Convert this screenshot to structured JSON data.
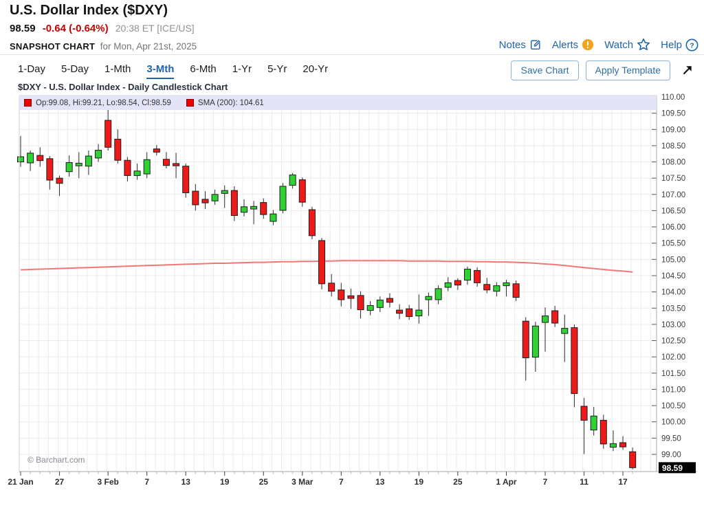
{
  "header": {
    "title": "U.S. Dollar Index ($DXY)",
    "last_price": "98.59",
    "change": "-0.64 (-0.64%)",
    "quote_time": "20:38 ET [ICE/US]",
    "snapshot_label": "SNAPSHOT CHART",
    "snapshot_date": "for Mon, Apr 21st, 2025",
    "links": [
      {
        "label": "Notes",
        "icon": "notes-edit-icon"
      },
      {
        "label": "Alerts",
        "icon": "alert-circle-icon"
      },
      {
        "label": "Watch",
        "icon": "star-icon"
      },
      {
        "label": "Help",
        "icon": "help-circle-icon"
      }
    ]
  },
  "toolbar": {
    "tabs": [
      {
        "label": "1-Day",
        "active": false
      },
      {
        "label": "5-Day",
        "active": false
      },
      {
        "label": "1-Mth",
        "active": false
      },
      {
        "label": "3-Mth",
        "active": true
      },
      {
        "label": "6-Mth",
        "active": false
      },
      {
        "label": "1-Yr",
        "active": false
      },
      {
        "label": "5-Yr",
        "active": false
      },
      {
        "label": "20-Yr",
        "active": false
      }
    ],
    "save_chart_label": "Save Chart",
    "apply_template_label": "Apply Template"
  },
  "chart": {
    "subtitle": "$DXY - U.S. Dollar Index - Daily Candlestick Chart",
    "legend": {
      "ohlc_label": "Op:99.08, Hi:99.21, Lo:98.54, Cl:98.59",
      "sma_label": "SMA (200): 104.61"
    },
    "watermark": "© Barchart.com",
    "last_price_label": "98.59",
    "colors": {
      "accent_blue": "#1f63a8",
      "change_red": "#c40000",
      "alert_orange": "#f2a41d",
      "candle_up": "#2fd133",
      "candle_down": "#ee1a1a",
      "candle_border": "#1c1c1c",
      "wick": "#2a2a2a",
      "sma_line": "#f07070",
      "grid": "#ececec",
      "axis": "#a8a8a8",
      "tick": "#555555",
      "axis_label": "#3c3c3c",
      "badge_bg": "#000000",
      "badge_text": "#ffffff",
      "legend_bg": "#e4e4f8",
      "watermark_gray": "#8b8b95"
    }
  },
  "chart_data": {
    "type": "candlestick",
    "title": "$DXY - U.S. Dollar Index - Daily Candlestick Chart",
    "y_axis": {
      "label_max": 110.0,
      "label_min": 99.0,
      "tick_step": 0.5,
      "plot_min": 98.47,
      "plot_max": 110.17
    },
    "x_labels": [
      {
        "label": "21 Jan",
        "index": 0
      },
      {
        "label": "27",
        "index": 4
      },
      {
        "label": "3 Feb",
        "index": 9
      },
      {
        "label": "7",
        "index": 13
      },
      {
        "label": "13",
        "index": 17
      },
      {
        "label": "19",
        "index": 21
      },
      {
        "label": "25",
        "index": 25
      },
      {
        "label": "3 Mar",
        "index": 29
      },
      {
        "label": "7",
        "index": 33
      },
      {
        "label": "13",
        "index": 37
      },
      {
        "label": "19",
        "index": 41
      },
      {
        "label": "25",
        "index": 45
      },
      {
        "label": "1 Apr",
        "index": 50
      },
      {
        "label": "7",
        "index": 54
      },
      {
        "label": "11",
        "index": 58
      },
      {
        "label": "17",
        "index": 62
      }
    ],
    "candles": {
      "format": [
        "date",
        "open",
        "high",
        "low",
        "close"
      ],
      "rows": [
        [
          "Jan 21",
          108.0,
          108.8,
          107.85,
          108.16
        ],
        [
          "Jan 22",
          107.97,
          108.35,
          107.72,
          108.27
        ],
        [
          "Jan 23",
          108.2,
          108.45,
          107.85,
          108.04
        ],
        [
          "Jan 24",
          108.1,
          108.18,
          107.15,
          107.44
        ],
        [
          "Jan 27",
          107.5,
          107.58,
          106.95,
          107.34
        ],
        [
          "Jan 28",
          107.7,
          108.2,
          107.55,
          107.98
        ],
        [
          "Jan 29",
          107.88,
          108.3,
          107.5,
          107.96
        ],
        [
          "Jan 30",
          107.87,
          108.35,
          107.6,
          108.18
        ],
        [
          "Jan 31",
          108.12,
          108.55,
          108.0,
          108.36
        ],
        [
          "Feb 3",
          109.28,
          109.8,
          108.35,
          108.45
        ],
        [
          "Feb 4",
          108.7,
          109.0,
          107.95,
          108.05
        ],
        [
          "Feb 5",
          108.05,
          108.15,
          107.4,
          107.58
        ],
        [
          "Feb 6",
          107.58,
          107.95,
          107.45,
          107.72
        ],
        [
          "Feb 7",
          107.63,
          108.3,
          107.5,
          108.07
        ],
        [
          "Feb 10",
          108.4,
          108.52,
          108.2,
          108.3
        ],
        [
          "Feb 11",
          108.08,
          108.3,
          107.8,
          107.89
        ],
        [
          "Feb 12",
          107.95,
          108.28,
          107.5,
          107.88
        ],
        [
          "Feb 13",
          107.87,
          107.95,
          106.9,
          107.05
        ],
        [
          "Feb 14",
          107.1,
          107.32,
          106.5,
          106.68
        ],
        [
          "Feb 17",
          106.85,
          107.1,
          106.55,
          106.74
        ],
        [
          "Feb 18",
          106.8,
          107.15,
          106.68,
          107.0
        ],
        [
          "Feb 19",
          107.03,
          107.28,
          106.58,
          107.12
        ],
        [
          "Feb 20",
          107.12,
          107.25,
          106.18,
          106.35
        ],
        [
          "Feb 21",
          106.45,
          106.85,
          106.32,
          106.62
        ],
        [
          "Feb 24",
          106.55,
          106.8,
          106.08,
          106.63
        ],
        [
          "Feb 25",
          106.75,
          106.88,
          106.25,
          106.38
        ],
        [
          "Feb 26",
          106.17,
          106.52,
          106.05,
          106.4
        ],
        [
          "Feb 27",
          106.51,
          107.35,
          106.42,
          107.25
        ],
        [
          "Feb 28",
          107.28,
          107.66,
          107.18,
          107.6
        ],
        [
          "Mar 3",
          107.45,
          107.52,
          106.62,
          106.76
        ],
        [
          "Mar 4",
          106.53,
          106.62,
          105.62,
          105.73
        ],
        [
          "Mar 5",
          105.58,
          105.66,
          104.08,
          104.25
        ],
        [
          "Mar 6",
          104.27,
          104.55,
          103.86,
          104.02
        ],
        [
          "Mar 7",
          104.06,
          104.28,
          103.55,
          103.76
        ],
        [
          "Mar 10",
          103.88,
          104.1,
          103.48,
          103.8
        ],
        [
          "Mar 11",
          103.89,
          104.02,
          103.18,
          103.45
        ],
        [
          "Mar 12",
          103.43,
          103.72,
          103.28,
          103.58
        ],
        [
          "Mar 13",
          103.52,
          103.86,
          103.38,
          103.75
        ],
        [
          "Mar 14",
          103.8,
          103.96,
          103.52,
          103.68
        ],
        [
          "Mar 17",
          103.44,
          103.62,
          103.16,
          103.34
        ],
        [
          "Mar 18",
          103.48,
          103.6,
          103.14,
          103.24
        ],
        [
          "Mar 19",
          103.26,
          103.92,
          103.02,
          103.44
        ],
        [
          "Mar 20",
          103.76,
          103.98,
          103.26,
          103.86
        ],
        [
          "Mar 21",
          103.76,
          104.2,
          103.62,
          104.1
        ],
        [
          "Mar 24",
          104.14,
          104.45,
          104.02,
          104.28
        ],
        [
          "Mar 25",
          104.35,
          104.42,
          104.06,
          104.21
        ],
        [
          "Mar 26",
          104.36,
          104.78,
          104.22,
          104.7
        ],
        [
          "Mar 27",
          104.66,
          104.76,
          104.16,
          104.28
        ],
        [
          "Mar 28",
          104.23,
          104.43,
          103.96,
          104.06
        ],
        [
          "Mar 31",
          104.02,
          104.3,
          103.86,
          104.19
        ],
        [
          "Apr 1",
          104.19,
          104.37,
          103.86,
          104.28
        ],
        [
          "Apr 2",
          104.25,
          104.35,
          103.72,
          103.83
        ],
        [
          "Apr 3",
          103.1,
          103.22,
          101.27,
          101.97
        ],
        [
          "Apr 4",
          101.99,
          103.08,
          101.54,
          102.95
        ],
        [
          "Apr 7",
          103.06,
          103.52,
          102.16,
          103.26
        ],
        [
          "Apr 8",
          103.42,
          103.57,
          102.92,
          103.04
        ],
        [
          "Apr 9",
          102.72,
          103.3,
          101.84,
          102.88
        ],
        [
          "Apr 10",
          102.9,
          103.0,
          100.45,
          100.87
        ],
        [
          "Apr 11",
          100.48,
          100.74,
          99.01,
          100.05
        ],
        [
          "Apr 14",
          99.75,
          100.46,
          99.58,
          100.18
        ],
        [
          "Apr 15",
          100.05,
          100.22,
          99.17,
          99.32
        ],
        [
          "Apr 16",
          99.22,
          99.74,
          99.1,
          99.33
        ],
        [
          "Apr 17",
          99.36,
          99.56,
          99.14,
          99.23
        ],
        [
          "Apr 21",
          99.08,
          99.21,
          98.54,
          98.59
        ]
      ]
    },
    "sma200": [
      104.68,
      104.69,
      104.7,
      104.71,
      104.72,
      104.73,
      104.74,
      104.75,
      104.76,
      104.77,
      104.78,
      104.79,
      104.8,
      104.81,
      104.82,
      104.83,
      104.84,
      104.85,
      104.86,
      104.87,
      104.88,
      104.88,
      104.89,
      104.9,
      104.91,
      104.91,
      104.92,
      104.93,
      104.93,
      104.94,
      104.94,
      104.95,
      104.95,
      104.96,
      104.96,
      104.96,
      104.96,
      104.96,
      104.96,
      104.96,
      104.95,
      104.95,
      104.95,
      104.95,
      104.94,
      104.94,
      104.94,
      104.93,
      104.93,
      104.92,
      104.92,
      104.91,
      104.9,
      104.88,
      104.86,
      104.84,
      104.81,
      104.78,
      104.75,
      104.72,
      104.69,
      104.66,
      104.64,
      104.61
    ],
    "last_price": 98.59,
    "legend_position": "top-left",
    "grid": true
  }
}
